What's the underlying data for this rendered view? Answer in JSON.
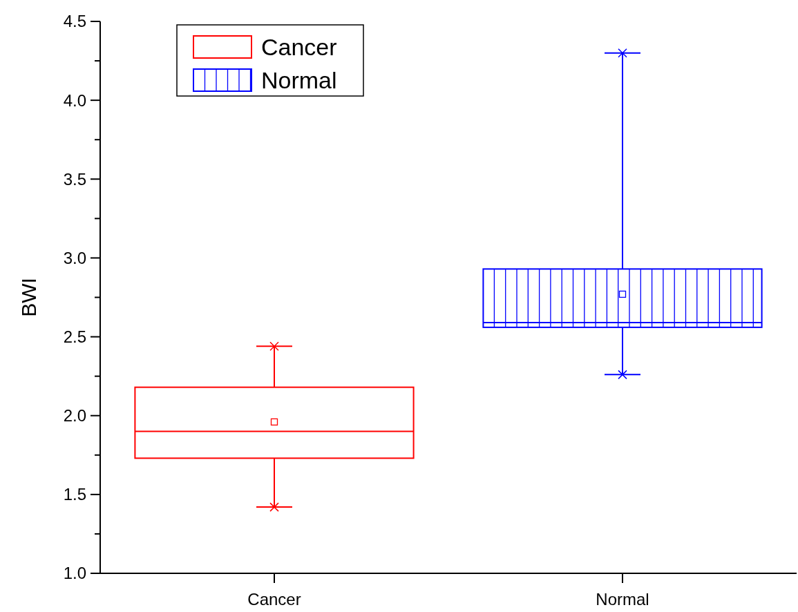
{
  "chart_data": {
    "type": "box",
    "ylabel": "BWI",
    "categories": [
      "Cancer",
      "Normal"
    ],
    "ylim": [
      1.0,
      4.5
    ],
    "yticks": [
      {
        "value": 1.0,
        "label": "1.0"
      },
      {
        "value": 1.25,
        "label": null
      },
      {
        "value": 1.5,
        "label": "1.5"
      },
      {
        "value": 1.75,
        "label": null
      },
      {
        "value": 2.0,
        "label": "2.0"
      },
      {
        "value": 2.25,
        "label": null
      },
      {
        "value": 2.5,
        "label": "2.5"
      },
      {
        "value": 2.75,
        "label": null
      },
      {
        "value": 3.0,
        "label": "3.0"
      },
      {
        "value": 3.25,
        "label": null
      },
      {
        "value": 3.5,
        "label": "3.5"
      },
      {
        "value": 3.75,
        "label": null
      },
      {
        "value": 4.0,
        "label": "4.0"
      },
      {
        "value": 4.25,
        "label": null
      },
      {
        "value": 4.5,
        "label": "4.5"
      }
    ],
    "series": [
      {
        "name": "Cancer",
        "color": "#ff0000",
        "boxes": [
          {
            "low": 1.42,
            "q1": 1.73,
            "median": 1.9,
            "q3": 2.18,
            "high": 2.44,
            "mean": 1.96
          },
          null
        ]
      },
      {
        "name": "Normal",
        "color": "#0000ff",
        "boxes": [
          null,
          {
            "low": 2.26,
            "q1": 2.56,
            "median": 2.59,
            "q3": 2.93,
            "high": 4.3,
            "mean": 2.77
          }
        ]
      }
    ],
    "grid": false,
    "legend": "top left"
  }
}
